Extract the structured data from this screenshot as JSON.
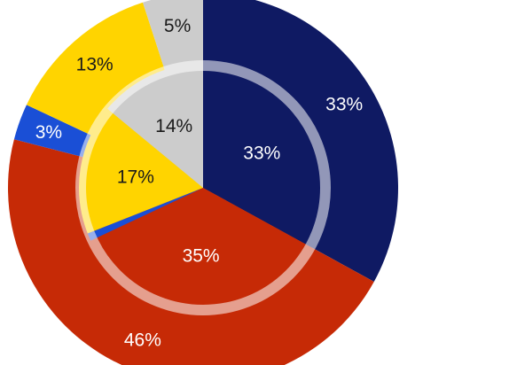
{
  "chart_data": {
    "type": "pie",
    "variant": "nested-donut",
    "title": "",
    "legend": "none",
    "colors": {
      "navy": "#0f1a63",
      "red": "#c62a06",
      "blue": "#1a4fd6",
      "yellow": "#ffd400",
      "grey": "#cccccc",
      "white_label": "#ffffff",
      "dark_label": "#1a1a1a",
      "divider_ring": "#ffffff"
    },
    "outer": [
      {
        "value": 33,
        "label": "33%",
        "color": "#0f1a63",
        "label_color": "#ffffff"
      },
      {
        "value": 46,
        "label": "46%",
        "color": "#c62a06",
        "label_color": "#ffffff"
      },
      {
        "value": 3,
        "label": "3%",
        "color": "#1a4fd6",
        "label_color": "#ffffff"
      },
      {
        "value": 13,
        "label": "13%",
        "color": "#ffd400",
        "label_color": "#1a1a1a"
      },
      {
        "value": 5,
        "label": "5%",
        "color": "#cccccc",
        "label_color": "#1a1a1a"
      }
    ],
    "inner": [
      {
        "value": 33,
        "label": "33%",
        "color": "#0f1a63",
        "label_color": "#ffffff"
      },
      {
        "value": 35,
        "label": "35%",
        "color": "#c62a06",
        "label_color": "#ffffff"
      },
      {
        "value": 1,
        "label": "",
        "color": "#1a4fd6",
        "label_color": "#ffffff"
      },
      {
        "value": 17,
        "label": "17%",
        "color": "#ffd400",
        "label_color": "#1a1a1a"
      },
      {
        "value": 14,
        "label": "14%",
        "color": "#cccccc",
        "label_color": "#1a1a1a"
      }
    ]
  }
}
